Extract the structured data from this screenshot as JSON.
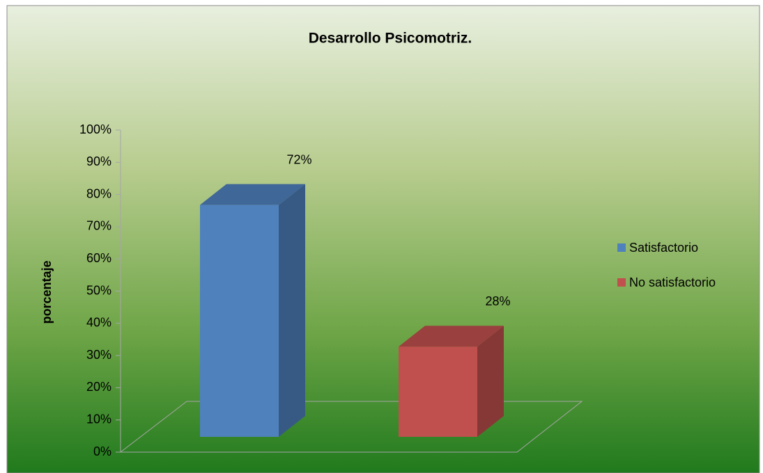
{
  "chart_data": {
    "type": "bar3d",
    "title": "Desarrollo Psicomotriz.",
    "y_label": "porcentaje",
    "categories": [
      null
    ],
    "series": [
      {
        "name": "Satisfactorio",
        "color": "#4f81bd",
        "values": [
          72
        ],
        "value_labels": [
          "72%"
        ]
      },
      {
        "name": "No satisfactorio",
        "color": "#c0504d",
        "values": [
          28
        ],
        "value_labels": [
          "28%"
        ]
      }
    ],
    "ylim": [
      0,
      100
    ],
    "yticks": [
      {
        "value": 0,
        "label": "0%"
      },
      {
        "value": 10,
        "label": "10%"
      },
      {
        "value": 20,
        "label": "20%"
      },
      {
        "value": 30,
        "label": "30%"
      },
      {
        "value": 40,
        "label": "40%"
      },
      {
        "value": 50,
        "label": "50%"
      },
      {
        "value": 60,
        "label": "60%"
      },
      {
        "value": 70,
        "label": "70%"
      },
      {
        "value": 80,
        "label": "80%"
      },
      {
        "value": 90,
        "label": "90%"
      },
      {
        "value": 100,
        "label": "100%"
      }
    ],
    "legend": "right",
    "grid": false
  }
}
